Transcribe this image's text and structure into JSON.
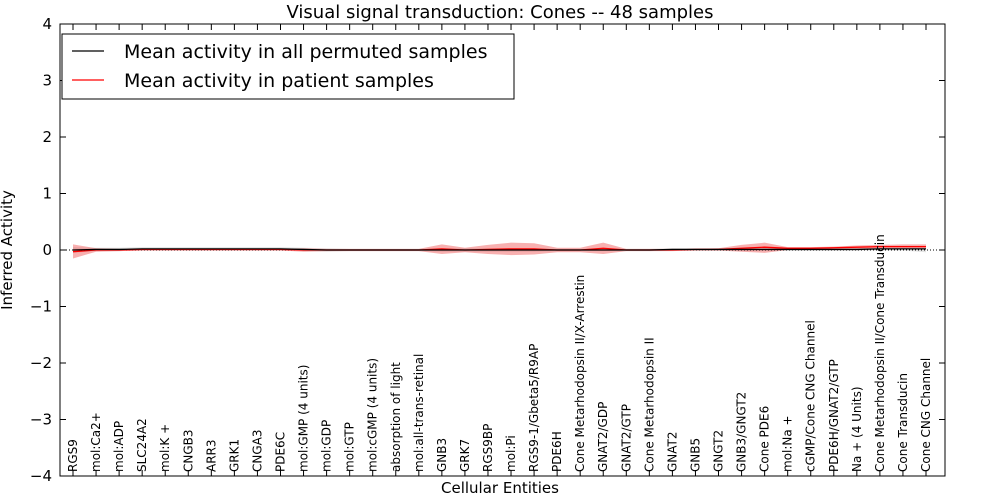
{
  "chart_data": {
    "type": "line",
    "title": "Visual signal transduction: Cones -- 48 samples",
    "xlabel": "Cellular Entities",
    "ylabel": "Inferred Activity",
    "ylim": [
      -4,
      4
    ],
    "yticks": [
      -4,
      -3,
      -2,
      -1,
      0,
      1,
      2,
      3,
      4
    ],
    "ytick_labels": [
      "−4",
      "−3",
      "−2",
      "−1",
      "0",
      "1",
      "2",
      "3",
      "4"
    ],
    "legend_position": "top-left",
    "categories": [
      "RGS9",
      "mol:Ca2+",
      "mol:ADP",
      "SLC24A2",
      "mol:K +",
      "CNGB3",
      "ARR3",
      "GRK1",
      "CNGA3",
      "PDE6C",
      "mol:GMP (4 units)",
      "mol:GDP",
      "mol:GTP",
      "mol:cGMP (4 units)",
      "absorption of light",
      "mol:all-trans-retinal",
      "GNB3",
      "GRK7",
      "RGS9BP",
      "mol:Pi",
      "RGS9-1/Gbeta5/R9AP",
      "PDE6H",
      "Cone Metarhodopsin II/X-Arrestin",
      "GNAT2/GDP",
      "GNAT2/GTP",
      "Cone Metarhodopsin II",
      "GNAT2",
      "GNB5",
      "GNGT2",
      "GNB3/GNGT2",
      "Cone PDE6",
      "mol:Na +",
      "cGMP/Cone CNG Channel",
      "PDE6H/GNAT2/GTP",
      "Na + (4 Units)",
      "Cone Metarhodopsin II/Cone Transducin",
      "Cone Transducin",
      "Cone CNG Channel"
    ],
    "series": [
      {
        "name": "Mean activity in all permuted samples",
        "color": "#000000",
        "values": [
          0.0,
          0.01,
          0.01,
          0.02,
          0.02,
          0.02,
          0.02,
          0.02,
          0.02,
          0.02,
          0.01,
          0.0,
          0.0,
          0.0,
          0.0,
          0.0,
          0.0,
          0.0,
          0.0,
          0.0,
          0.0,
          0.0,
          0.0,
          0.0,
          0.0,
          0.0,
          0.01,
          0.01,
          0.01,
          0.01,
          0.01,
          0.01,
          0.01,
          0.01,
          0.01,
          0.02,
          0.02,
          0.02
        ],
        "band_upper": [
          0.05,
          0.04,
          0.04,
          0.05,
          0.05,
          0.05,
          0.05,
          0.05,
          0.05,
          0.05,
          0.04,
          0.03,
          0.02,
          0.02,
          0.02,
          0.02,
          0.03,
          0.03,
          0.03,
          0.03,
          0.03,
          0.02,
          0.02,
          0.02,
          0.02,
          0.02,
          0.03,
          0.03,
          0.03,
          0.03,
          0.03,
          0.03,
          0.03,
          0.03,
          0.03,
          0.04,
          0.04,
          0.04
        ],
        "band_lower": [
          -0.05,
          -0.02,
          -0.02,
          -0.01,
          -0.01,
          -0.01,
          -0.01,
          -0.01,
          -0.01,
          -0.01,
          -0.02,
          -0.03,
          -0.02,
          -0.02,
          -0.02,
          -0.02,
          -0.03,
          -0.03,
          -0.03,
          -0.03,
          -0.03,
          -0.02,
          -0.02,
          -0.02,
          -0.02,
          -0.02,
          -0.01,
          -0.01,
          -0.01,
          -0.01,
          -0.01,
          -0.01,
          -0.01,
          -0.01,
          -0.01,
          -0.01,
          -0.01,
          -0.04
        ]
      },
      {
        "name": "Mean activity in patient samples",
        "color": "#ff0000",
        "values": [
          -0.03,
          0.0,
          0.0,
          0.01,
          0.01,
          0.01,
          0.01,
          0.01,
          0.01,
          0.01,
          0.0,
          0.0,
          0.0,
          0.0,
          0.0,
          0.0,
          0.02,
          0.0,
          0.01,
          0.02,
          0.02,
          0.0,
          0.0,
          0.03,
          0.0,
          0.0,
          0.0,
          0.01,
          0.01,
          0.03,
          0.05,
          0.03,
          0.03,
          0.04,
          0.05,
          0.06,
          0.06,
          0.06
        ],
        "band_upper": [
          0.1,
          0.03,
          0.02,
          0.02,
          0.02,
          0.02,
          0.02,
          0.02,
          0.02,
          0.02,
          0.03,
          0.02,
          0.02,
          0.02,
          0.02,
          0.02,
          0.1,
          0.04,
          0.09,
          0.13,
          0.12,
          0.04,
          0.04,
          0.13,
          0.02,
          0.02,
          0.02,
          0.02,
          0.03,
          0.09,
          0.13,
          0.05,
          0.05,
          0.06,
          0.08,
          0.09,
          0.1,
          0.1
        ],
        "band_lower": [
          -0.15,
          -0.03,
          -0.02,
          -0.01,
          -0.01,
          -0.01,
          -0.01,
          -0.01,
          -0.01,
          -0.01,
          -0.03,
          -0.02,
          -0.02,
          -0.02,
          -0.02,
          -0.02,
          -0.07,
          -0.04,
          -0.07,
          -0.09,
          -0.08,
          -0.04,
          -0.04,
          -0.07,
          -0.02,
          -0.02,
          -0.02,
          -0.01,
          -0.01,
          -0.03,
          -0.05,
          0.0,
          0.01,
          0.02,
          0.02,
          0.03,
          0.03,
          0.03
        ]
      }
    ]
  }
}
